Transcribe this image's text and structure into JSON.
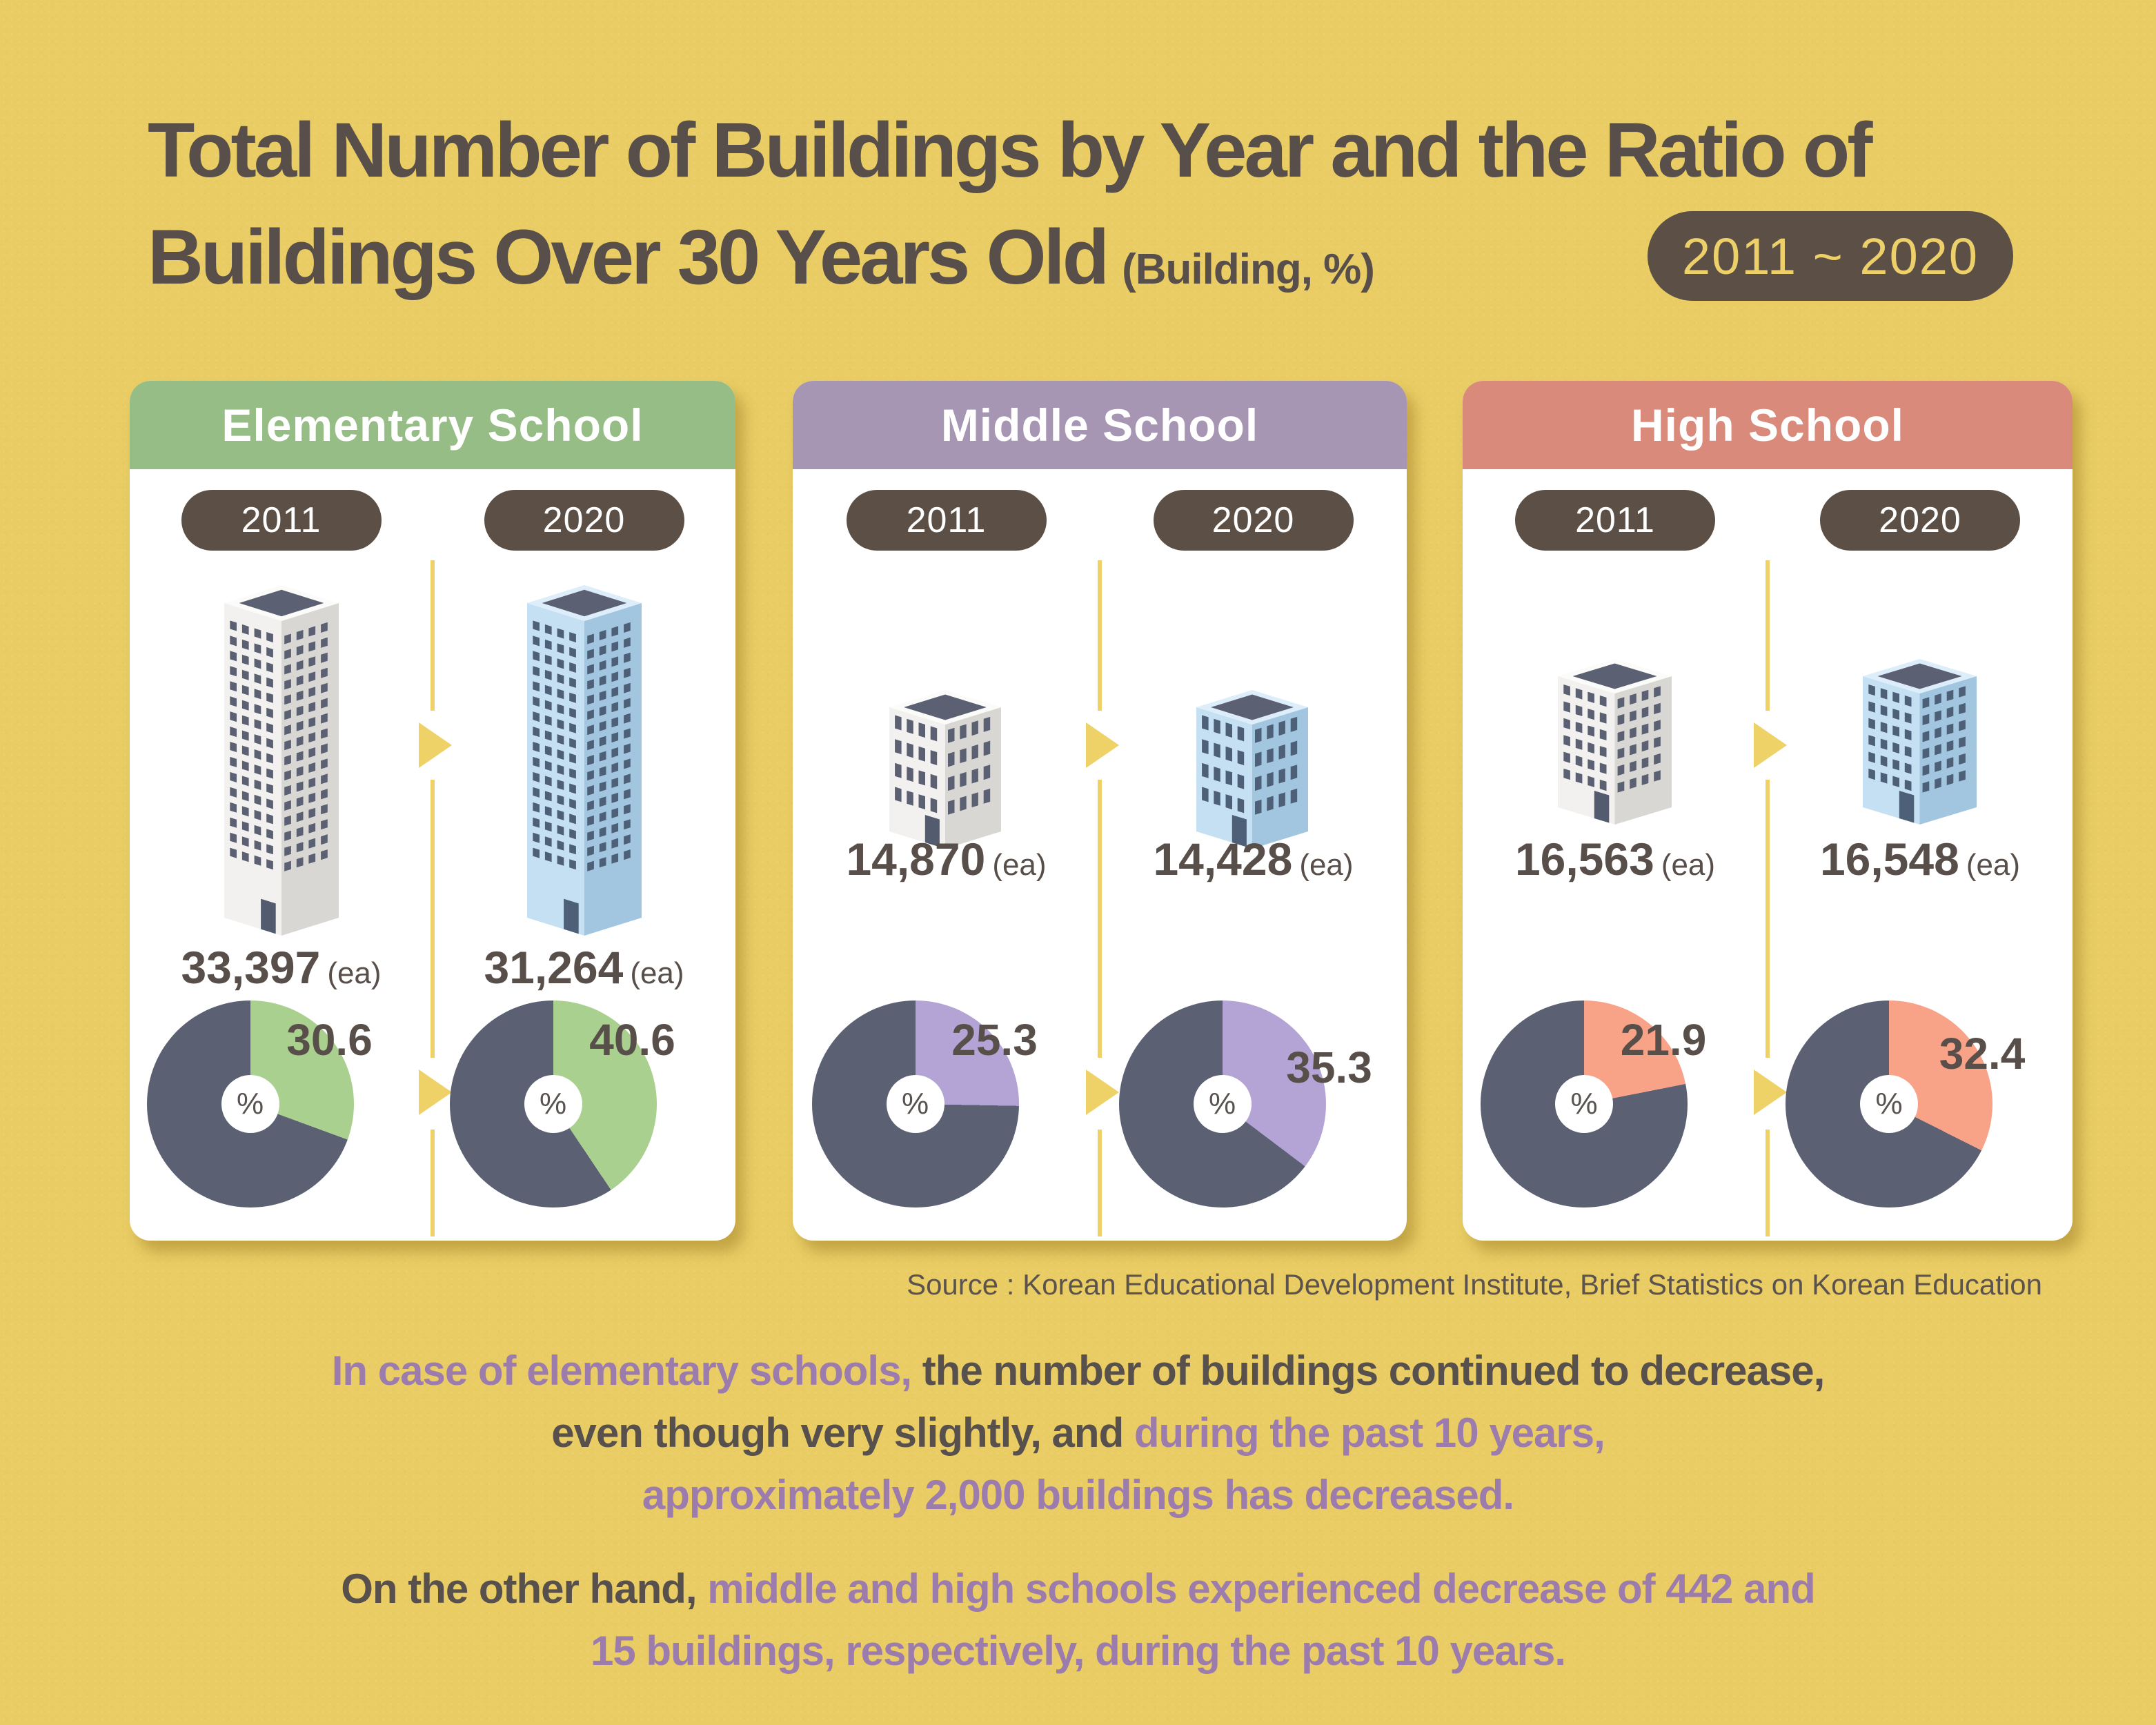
{
  "title": {
    "line1": "Total Number of Buildings by Year and the Ratio of",
    "line2": "Buildings Over 30 Years Old",
    "unit_note": "(Building, %)",
    "period_badge": "2011 ~ 2020"
  },
  "ui": {
    "percent_sign": "%"
  },
  "colors": {
    "background": "#e9cd64",
    "text_dark": "#584e4a",
    "pill_bg": "#5c5046",
    "badge_text": "#edd06a",
    "divider_yellow": "#eed268",
    "pie_dark": "#5b6173",
    "commentary_purple": "#9c7bad",
    "building_gray": {
      "left": "#f2f1ef",
      "right": "#d9d7d3",
      "rim": "#fbfbfa",
      "roof": "#5b6172",
      "win": "#5b6172",
      "door": "#525c6e"
    },
    "building_blue": {
      "left": "#c6e0f3",
      "right": "#a2c6e0",
      "rim": "#ddeefa",
      "roof": "#5b6172",
      "win": "#4e6077",
      "door": "#4e6077"
    }
  },
  "schools": [
    {
      "name": "Elementary School",
      "header_color": "#96bd86",
      "accent_color": "#a9d08e",
      "years": [
        {
          "label": "2011",
          "count": "33,397",
          "unit": "(ea)",
          "ratio_pct": 30.6,
          "building": "tall:building_gray"
        },
        {
          "label": "2020",
          "count": "31,264",
          "unit": "(ea)",
          "ratio_pct": 40.6,
          "building": "tall:building_blue"
        }
      ]
    },
    {
      "name": "Middle School",
      "header_color": "#a795b4",
      "accent_color": "#b3a4d5",
      "years": [
        {
          "label": "2011",
          "count": "14,870",
          "unit": "(ea)",
          "ratio_pct": 25.3,
          "building": "mid:building_gray"
        },
        {
          "label": "2020",
          "count": "14,428",
          "unit": "(ea)",
          "ratio_pct": 35.3,
          "building": "mid:building_blue"
        }
      ]
    },
    {
      "name": "High School",
      "header_color": "#d98a7a",
      "accent_color": "#f8a287",
      "years": [
        {
          "label": "2011",
          "count": "16,563",
          "unit": "(ea)",
          "ratio_pct": 21.9,
          "building": "high:building_gray"
        },
        {
          "label": "2020",
          "count": "16,548",
          "unit": "(ea)",
          "ratio_pct": 32.4,
          "building": "high:building_blue"
        }
      ]
    }
  ],
  "source": "Source : Korean Educational Development Institute, Brief Statistics on Korean Education",
  "commentary": {
    "para1": {
      "lines": [
        [
          {
            "t": "In case of elementary schools,",
            "c": "purple"
          },
          {
            "t": " the number of buildings continued to decrease,",
            "c": "dark"
          }
        ],
        [
          {
            "t": "even though very slightly, and ",
            "c": "dark"
          },
          {
            "t": "during the past 10 years,",
            "c": "purple"
          }
        ],
        [
          {
            "t": "approximately 2,000 buildings has decreased.",
            "c": "purple"
          }
        ]
      ]
    },
    "para2": {
      "lines": [
        [
          {
            "t": "On the other hand, ",
            "c": "dark"
          },
          {
            "t": "middle and high schools experienced decrease of 442 and",
            "c": "purple"
          }
        ],
        [
          {
            "t": "15 buildings, respectively, during the past 10 years.",
            "c": "purple"
          }
        ]
      ]
    }
  },
  "chart_data": {
    "type": "pie",
    "title": "Total Number of Buildings by Year and the Ratio of Buildings Over 30 Years Old (Building, %)",
    "period": "2011 ~ 2020",
    "legend_note": "Each donut shows % of buildings over 30 years old (accent slice, starting at 12 o'clock clockwise) vs the rest (dark slice)",
    "groups": [
      {
        "category": "Elementary School",
        "series": [
          {
            "year": "2011",
            "total_buildings": 33397,
            "over_30yr_ratio_pct": 30.6
          },
          {
            "year": "2020",
            "total_buildings": 31264,
            "over_30yr_ratio_pct": 40.6
          }
        ]
      },
      {
        "category": "Middle School",
        "series": [
          {
            "year": "2011",
            "total_buildings": 14870,
            "over_30yr_ratio_pct": 25.3
          },
          {
            "year": "2020",
            "total_buildings": 14428,
            "over_30yr_ratio_pct": 35.3
          }
        ]
      },
      {
        "category": "High School",
        "series": [
          {
            "year": "2011",
            "total_buildings": 16563,
            "over_30yr_ratio_pct": 21.9
          },
          {
            "year": "2020",
            "total_buildings": 16548,
            "over_30yr_ratio_pct": 32.4
          }
        ]
      }
    ]
  }
}
